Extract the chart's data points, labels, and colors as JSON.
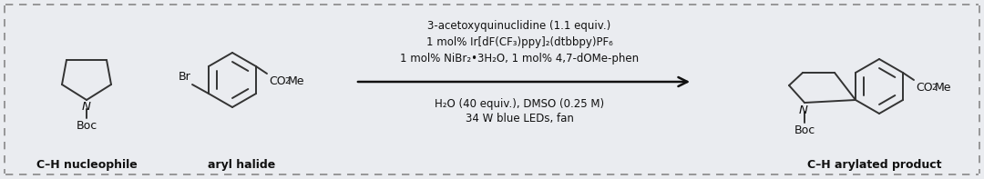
{
  "bg_color": "#eaecf0",
  "border_color": "#888888",
  "fig_width": 10.8,
  "fig_height": 1.97,
  "dpi": 100,
  "reaction_lines": [
    "3-acetoxyquinuclidine (1.1 equiv.)",
    "1 mol% Ir[dF(CF₃)ppy]₂(dtbbpy)PF₆",
    "1 mol% NiBr₂•3H₂O, 1 mol% 4,7-dOMe-phen",
    "H₂O (40 equiv.), DMSO (0.25 M)",
    "34 W blue LEDs, fan"
  ],
  "label_nucleophile": "C–H nucleophile",
  "label_halide": "aryl halide",
  "label_product": "C–H arylated product",
  "arrow_color": "#111111",
  "text_color": "#111111",
  "bond_color": "#333333",
  "bold_bond_color": "#7b1a2e",
  "label_fontsize": 9.0,
  "reaction_fontsize": 8.5,
  "sub_fontsize": 6.0
}
